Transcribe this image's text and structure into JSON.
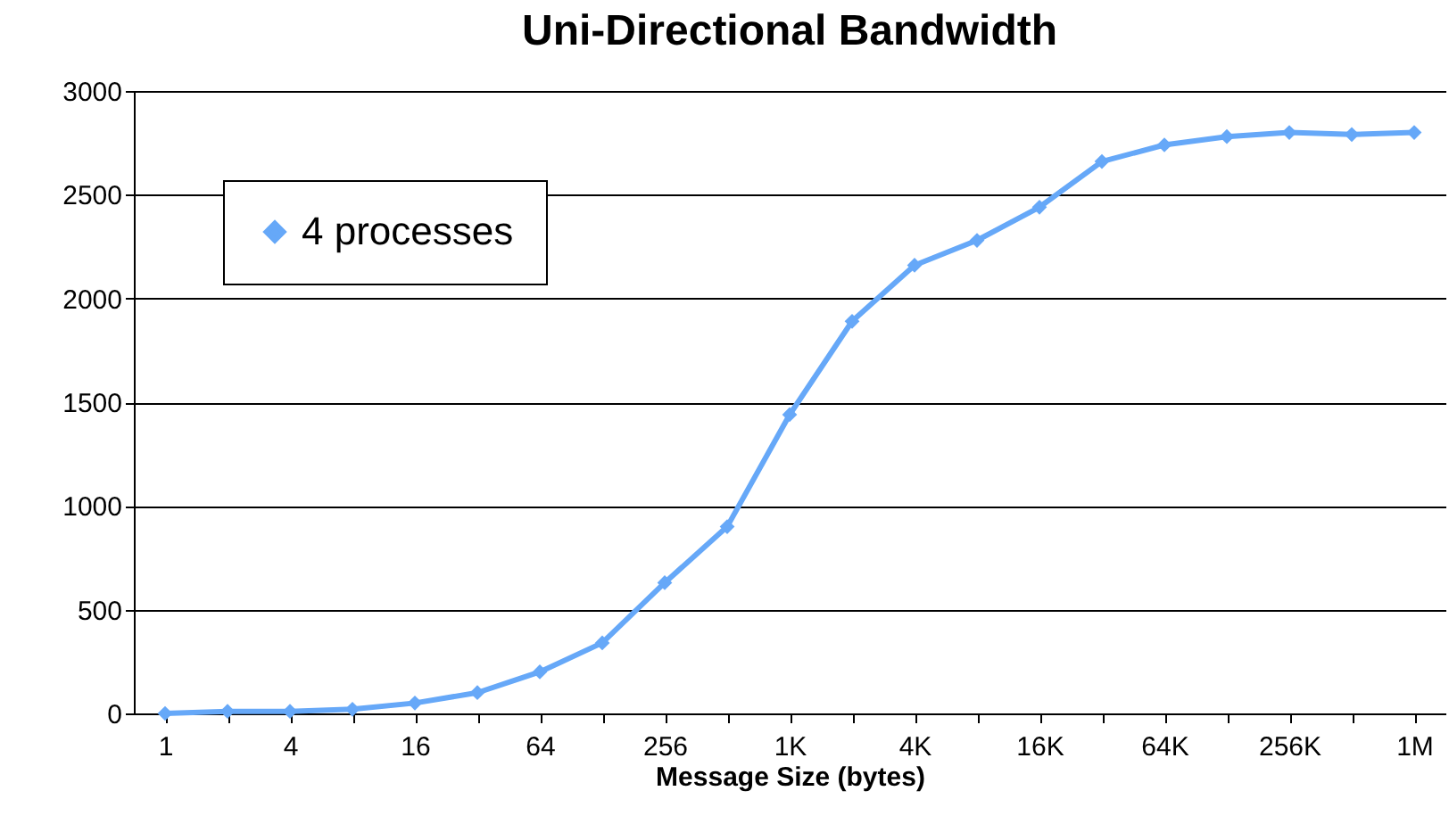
{
  "chart_data": {
    "type": "line",
    "title": "Uni-Directional Bandwidth",
    "xlabel": "Message Size (bytes)",
    "categories": [
      "1",
      null,
      "4",
      null,
      "16",
      null,
      "64",
      null,
      "256",
      null,
      "1K",
      null,
      "4K",
      null,
      "16K",
      null,
      "64K",
      null,
      "256K",
      null,
      "1M"
    ],
    "series": [
      {
        "name": "4 processes",
        "color": "#66a8f8",
        "values": [
          0,
          10,
          10,
          20,
          50,
          100,
          200,
          340,
          630,
          900,
          1440,
          1890,
          2160,
          2280,
          2440,
          2660,
          2740,
          2780,
          2800,
          2790,
          2800
        ]
      }
    ],
    "ylim": [
      0,
      3000
    ],
    "yticks": [
      0,
      500,
      1000,
      1500,
      2000,
      2500,
      3000
    ],
    "grid": "y",
    "legend": "top left",
    "marker": "diamond",
    "line_style": "solid"
  }
}
